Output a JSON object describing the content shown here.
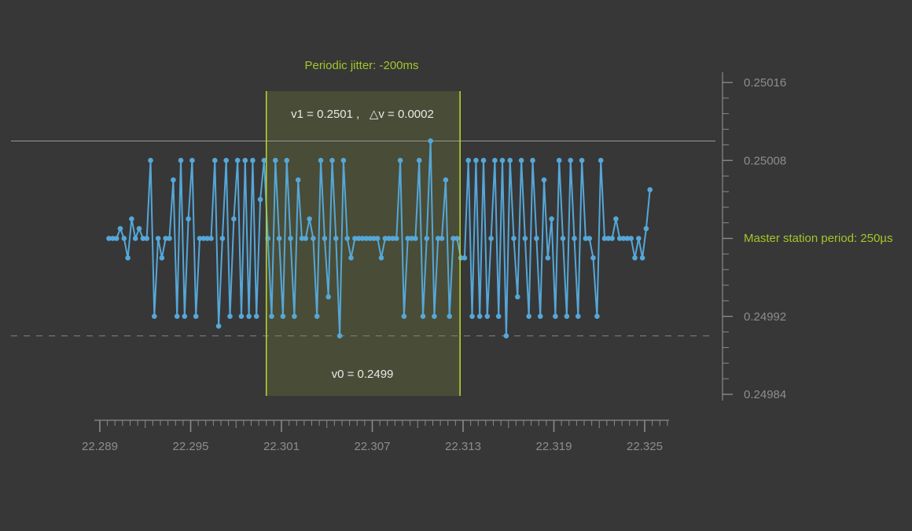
{
  "title": {
    "text": "Periodic jitter: -200ms"
  },
  "annotations": {
    "v1_label": "v1 = 0.2501 ,   △v = 0.0002",
    "v0_label": "v0 = 0.2499",
    "master_label": "Master station period: 250µs"
  },
  "colors": {
    "background": "#373737",
    "series_blue": "#55a7d8",
    "accent_green": "#a2c62b",
    "region_border_green": "#b2d233",
    "region_fill": "rgba(185,208,50,0.14)",
    "axis_gray": "#8a8a8a",
    "tick_label_gray": "#8d8d8d",
    "ref_line_solid": "#989898",
    "ref_line_dashed": "#848484",
    "annotation_white": "#e9e9e9"
  },
  "chart_data": {
    "type": "line",
    "title": "Periodic jitter: -200ms",
    "xlabel": "",
    "ylabel": "",
    "legend": "none",
    "grid": false,
    "marker": "circle",
    "x_axis": {
      "label_ticks": [
        22.289,
        22.295,
        22.301,
        22.307,
        22.313,
        22.319,
        22.325
      ],
      "label_format_decimals": 3,
      "minor_tick_step": 0.0005,
      "range": [
        22.2886,
        22.3266
      ]
    },
    "y_axis": {
      "ticks": [
        0.25016,
        0.25008,
        0.25,
        0.24992,
        0.24984
      ],
      "unlabeled_tick": 0.25,
      "label_format_decimals": 5,
      "range": [
        0.24983,
        0.25018
      ]
    },
    "reference": {
      "v1": 0.2501,
      "v0": 0.2499,
      "delta_v": 0.0002
    },
    "highlight_region": {
      "t_start": 22.3,
      "t_end": 22.3128
    },
    "t_start": 22.2896,
    "t_step": 0.00025,
    "values": [
      0.25,
      0.25,
      0.25,
      0.25001,
      0.25,
      0.24998,
      0.25002,
      0.25,
      0.25001,
      0.25,
      0.25,
      0.25008,
      0.24992,
      0.25,
      0.24998,
      0.25,
      0.25,
      0.25006,
      0.24992,
      0.25008,
      0.24992,
      0.25002,
      0.25008,
      0.24992,
      0.25,
      0.25,
      0.25,
      0.25,
      0.25008,
      0.24991,
      0.25,
      0.25008,
      0.24992,
      0.25002,
      0.25008,
      0.24992,
      0.25008,
      0.24992,
      0.25008,
      0.24992,
      0.25004,
      0.25008,
      0.25,
      0.24992,
      0.25008,
      0.25,
      0.24992,
      0.25008,
      0.25,
      0.24992,
      0.25006,
      0.25,
      0.25,
      0.25002,
      0.25,
      0.24992,
      0.25008,
      0.25,
      0.24994,
      0.25008,
      0.25,
      0.2499,
      0.25008,
      0.25,
      0.24998,
      0.25,
      0.25,
      0.25,
      0.25,
      0.25,
      0.25,
      0.25,
      0.24998,
      0.25,
      0.25,
      0.25,
      0.25,
      0.25008,
      0.24992,
      0.25,
      0.25,
      0.25,
      0.25008,
      0.24992,
      0.25,
      0.2501,
      0.24992,
      0.25,
      0.25,
      0.25006,
      0.24992,
      0.25,
      0.25,
      0.24998,
      0.24998,
      0.25008,
      0.24992,
      0.25008,
      0.24992,
      0.25008,
      0.24992,
      0.25,
      0.25008,
      0.24992,
      0.25008,
      0.2499,
      0.25008,
      0.25,
      0.24994,
      0.25008,
      0.25,
      0.24992,
      0.25008,
      0.25,
      0.24992,
      0.25006,
      0.24998,
      0.25002,
      0.24992,
      0.25008,
      0.25,
      0.24992,
      0.25008,
      0.25,
      0.24992,
      0.25008,
      0.25,
      0.25,
      0.24998,
      0.24992,
      0.25008,
      0.25,
      0.25,
      0.25,
      0.25002,
      0.25,
      0.25,
      0.25,
      0.25,
      0.24998,
      0.25,
      0.24998,
      0.25001,
      0.25005
    ]
  }
}
